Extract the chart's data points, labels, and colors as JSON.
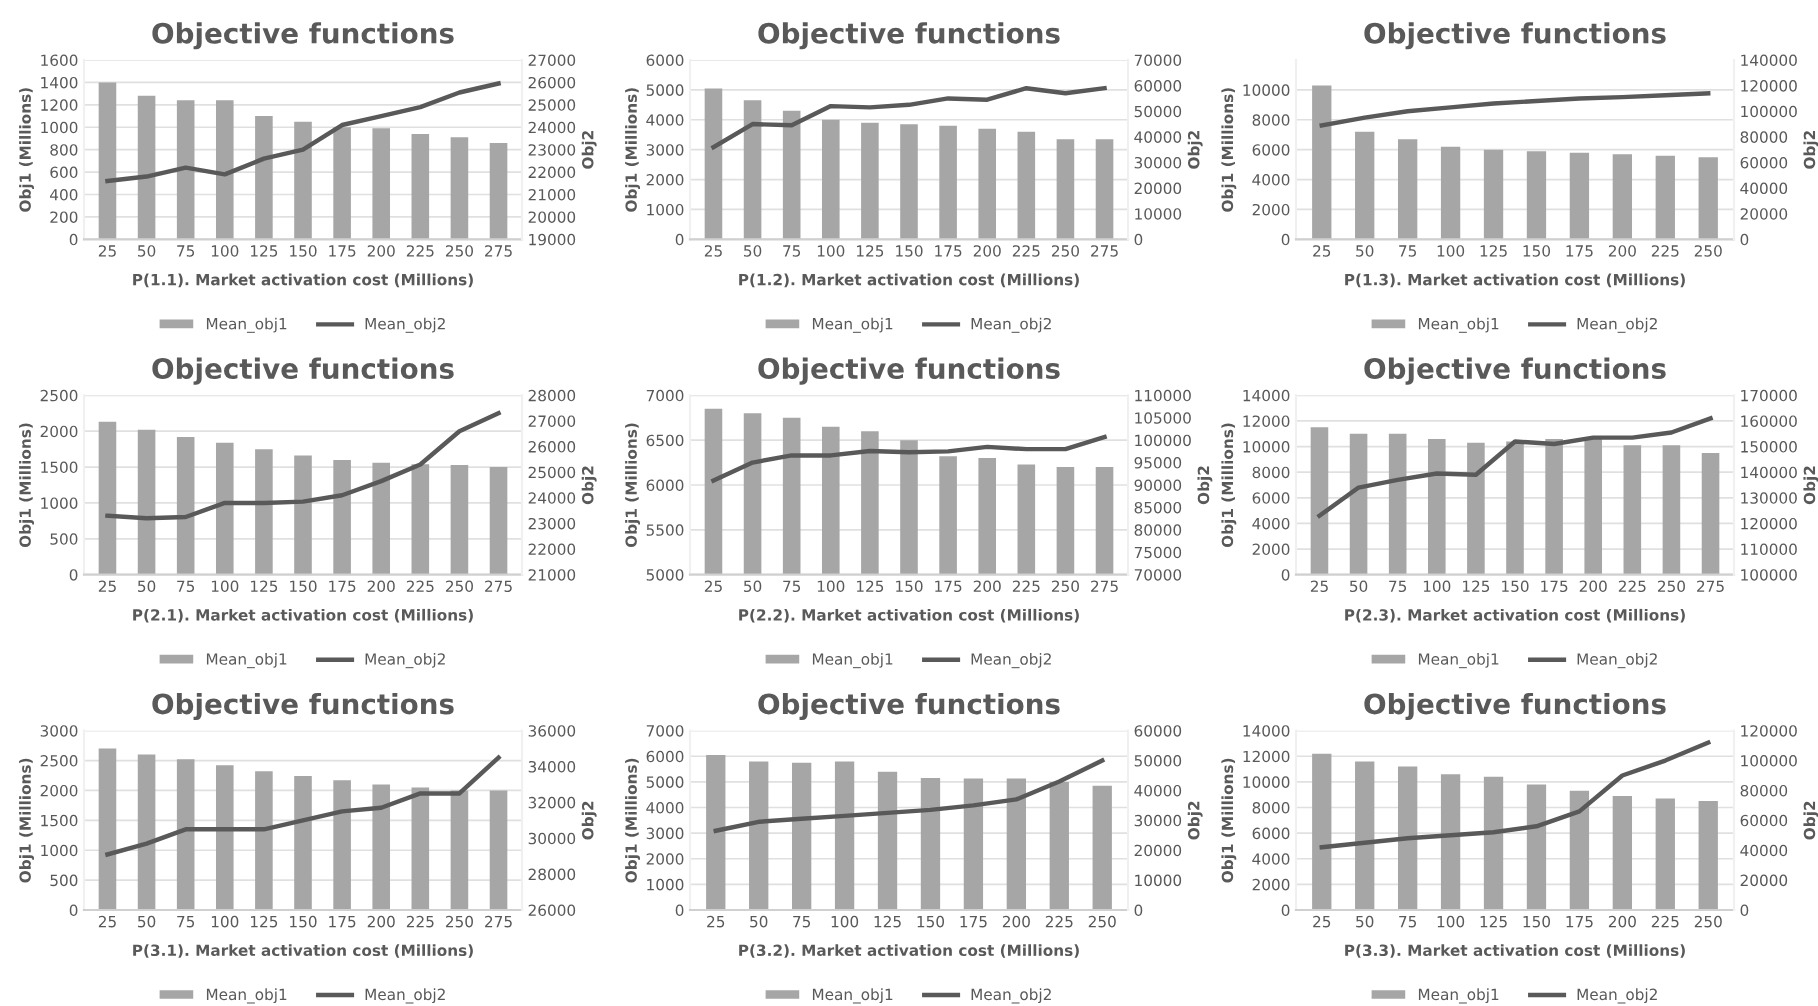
{
  "chart_data": [
    {
      "type": "bar",
      "title": "Objective functions",
      "xlabel": "P(1.1). Market activation cost (Millions)",
      "ylabel": "Obj1 (Millions)",
      "y2label": "Obj2",
      "categories": [
        "25",
        "50",
        "75",
        "100",
        "125",
        "150",
        "175",
        "200",
        "225",
        "250",
        "275"
      ],
      "series": [
        {
          "name": "Mean_obj1",
          "color": "#a6a6a6",
          "values": [
            1400,
            1280,
            1240,
            1240,
            1100,
            1050,
            1000,
            990,
            940,
            910,
            860
          ]
        },
        {
          "name": "Mean_obj2",
          "type": "line",
          "axis": "y2",
          "color": "#595959",
          "values": [
            21600,
            21800,
            22200,
            21900,
            22600,
            23000,
            24100,
            24500,
            24900,
            25550,
            25950
          ]
        }
      ],
      "ylim": [
        0,
        1600
      ],
      "yticks": [
        0,
        200,
        400,
        600,
        800,
        1000,
        1200,
        1400,
        1600
      ],
      "y2lim": [
        19000,
        27000
      ],
      "y2ticks": [
        19000,
        20000,
        21000,
        22000,
        23000,
        24000,
        25000,
        26000,
        27000
      ],
      "grid": "y",
      "legend": "bottom"
    },
    {
      "type": "bar",
      "title": "Objective functions",
      "xlabel": "P(1.2). Market activation cost (Millions)",
      "ylabel": "Obj1 (Millions)",
      "y2label": "Obj2",
      "categories": [
        "25",
        "50",
        "75",
        "100",
        "125",
        "150",
        "175",
        "200",
        "225",
        "250",
        "275"
      ],
      "series": [
        {
          "name": "Mean_obj1",
          "color": "#a6a6a6",
          "values": [
            5050,
            4650,
            4300,
            4000,
            3900,
            3850,
            3800,
            3700,
            3600,
            3350,
            3350
          ]
        },
        {
          "name": "Mean_obj2",
          "type": "line",
          "axis": "y2",
          "color": "#595959",
          "values": [
            36000,
            45000,
            44500,
            52000,
            51500,
            52500,
            55000,
            54500,
            59000,
            57000,
            59000
          ]
        }
      ],
      "ylim": [
        0,
        6000
      ],
      "yticks": [
        0,
        1000,
        2000,
        3000,
        4000,
        5000,
        6000
      ],
      "y2lim": [
        0,
        70000
      ],
      "y2ticks": [
        0,
        10000,
        20000,
        30000,
        40000,
        50000,
        60000,
        70000
      ],
      "grid": "y",
      "legend": "bottom"
    },
    {
      "type": "bar",
      "title": "Objective functions",
      "xlabel": "P(1.3). Market activation cost (Millions)",
      "ylabel": "Obj1 (Millions)",
      "y2label": "Obj2",
      "categories": [
        "25",
        "50",
        "75",
        "100",
        "125",
        "150",
        "175",
        "200",
        "225",
        "250"
      ],
      "series": [
        {
          "name": "Mean_obj1",
          "color": "#a6a6a6",
          "values": [
            10300,
            7200,
            6700,
            6200,
            6000,
            5900,
            5800,
            5700,
            5600,
            5500
          ]
        },
        {
          "name": "Mean_obj2",
          "type": "line",
          "axis": "y2",
          "color": "#595959",
          "values": [
            89000,
            95000,
            100000,
            103000,
            106000,
            108000,
            110000,
            111000,
            112500,
            114000
          ]
        }
      ],
      "ylim": [
        0,
        12000
      ],
      "yticks": [
        0,
        2000,
        4000,
        6000,
        8000,
        10000
      ],
      "y2lim": [
        0,
        140000
      ],
      "y2ticks": [
        0,
        20000,
        40000,
        60000,
        80000,
        100000,
        120000,
        140000
      ],
      "grid": "y",
      "legend": "bottom"
    },
    {
      "type": "bar",
      "title": "Objective functions",
      "xlabel": "P(2.1). Market activation cost (Millions)",
      "ylabel": "Obj1 (Millions)",
      "y2label": "Obj2",
      "categories": [
        "25",
        "50",
        "75",
        "100",
        "125",
        "150",
        "175",
        "200",
        "225",
        "250",
        "275"
      ],
      "series": [
        {
          "name": "Mean_obj1",
          "color": "#a6a6a6",
          "values": [
            2130,
            2020,
            1920,
            1840,
            1750,
            1660,
            1600,
            1560,
            1540,
            1530,
            1500
          ]
        },
        {
          "name": "Mean_obj2",
          "type": "line",
          "axis": "y2",
          "color": "#595959",
          "values": [
            23300,
            23200,
            23250,
            23800,
            23800,
            23850,
            24100,
            24650,
            25300,
            26600,
            27300
          ]
        }
      ],
      "ylim": [
        0,
        2500
      ],
      "yticks": [
        0,
        500,
        1000,
        1500,
        2000,
        2500
      ],
      "y2lim": [
        21000,
        28000
      ],
      "y2ticks": [
        21000,
        22000,
        23000,
        24000,
        25000,
        26000,
        27000,
        28000
      ],
      "grid": "y",
      "legend": "bottom"
    },
    {
      "type": "bar",
      "title": "Objective functions",
      "xlabel": "P(2.2). Market activation cost (Millions)",
      "ylabel": "Obj1 (Millions)",
      "y2label": "Obj2",
      "categories": [
        "25",
        "50",
        "75",
        "100",
        "125",
        "150",
        "175",
        "200",
        "225",
        "250",
        "275"
      ],
      "series": [
        {
          "name": "Mean_obj1",
          "color": "#a6a6a6",
          "values": [
            6850,
            6800,
            6750,
            6650,
            6600,
            6500,
            6320,
            6300,
            6230,
            6200,
            6200
          ]
        },
        {
          "name": "Mean_obj2",
          "type": "line",
          "axis": "y2",
          "color": "#595959",
          "values": [
            91000,
            95000,
            96600,
            96600,
            97600,
            97300,
            97500,
            98500,
            98000,
            98000,
            100700
          ]
        }
      ],
      "ylim": [
        5000,
        7000
      ],
      "yticks": [
        5000,
        5500,
        6000,
        6500,
        7000
      ],
      "y2lim": [
        70000,
        110000
      ],
      "y2ticks": [
        70000,
        75000,
        80000,
        85000,
        90000,
        95000,
        100000,
        105000,
        110000
      ],
      "grid": "y",
      "legend": "bottom"
    },
    {
      "type": "bar",
      "title": "Objective functions",
      "xlabel": "P(2.3). Market activation cost (Millions)",
      "ylabel": "Obj1 (Millions)",
      "y2label": "Obj2",
      "categories": [
        "25",
        "50",
        "75",
        "100",
        "125",
        "150",
        "175",
        "200",
        "225",
        "250",
        "275"
      ],
      "series": [
        {
          "name": "Mean_obj1",
          "color": "#a6a6a6",
          "values": [
            11500,
            11000,
            11000,
            10600,
            10300,
            10400,
            10600,
            10700,
            10100,
            10100,
            9500
          ]
        },
        {
          "name": "Mean_obj2",
          "type": "line",
          "axis": "y2",
          "color": "#595959",
          "values": [
            123000,
            134000,
            137000,
            139500,
            139000,
            152000,
            151000,
            153500,
            153500,
            155500,
            161000
          ]
        }
      ],
      "ylim": [
        0,
        14000
      ],
      "yticks": [
        0,
        2000,
        4000,
        6000,
        8000,
        10000,
        12000,
        14000
      ],
      "y2lim": [
        100000,
        170000
      ],
      "y2ticks": [
        100000,
        110000,
        120000,
        130000,
        140000,
        150000,
        160000,
        170000
      ],
      "grid": "y",
      "legend": "bottom"
    },
    {
      "type": "bar",
      "title": "Objective functions",
      "xlabel": "P(3.1). Market activation cost (Millions)",
      "ylabel": "Obj1 (Millions)",
      "y2label": "Obj2",
      "categories": [
        "25",
        "50",
        "75",
        "100",
        "125",
        "150",
        "175",
        "200",
        "225",
        "250",
        "275"
      ],
      "series": [
        {
          "name": "Mean_obj1",
          "color": "#a6a6a6",
          "values": [
            2700,
            2600,
            2520,
            2420,
            2320,
            2240,
            2170,
            2100,
            2050,
            2000,
            2000
          ]
        },
        {
          "name": "Mean_obj2",
          "type": "line",
          "axis": "y2",
          "color": "#595959",
          "values": [
            29100,
            29700,
            30500,
            30500,
            30500,
            31000,
            31500,
            31700,
            32500,
            32500,
            34500
          ]
        }
      ],
      "ylim": [
        0,
        3000
      ],
      "yticks": [
        0,
        500,
        1000,
        1500,
        2000,
        2500,
        3000
      ],
      "y2lim": [
        26000,
        36000
      ],
      "y2ticks": [
        26000,
        28000,
        30000,
        32000,
        34000,
        36000
      ],
      "grid": "y",
      "legend": "bottom"
    },
    {
      "type": "bar",
      "title": "Objective functions",
      "xlabel": "P(3.2). Market activation cost (Millions)",
      "ylabel": "Obj1 (Millions)",
      "y2label": "Obj2",
      "categories": [
        "25",
        "50",
        "75",
        "100",
        "125",
        "150",
        "175",
        "200",
        "225",
        "250"
      ],
      "series": [
        {
          "name": "Mean_obj1",
          "color": "#a6a6a6",
          "values": [
            6050,
            5800,
            5750,
            5800,
            5400,
            5150,
            5130,
            5130,
            5000,
            4850
          ]
        },
        {
          "name": "Mean_obj2",
          "type": "line",
          "axis": "y2",
          "color": "#595959",
          "values": [
            26500,
            29500,
            30500,
            31500,
            32500,
            33500,
            35000,
            37000,
            43000,
            50000
          ]
        }
      ],
      "ylim": [
        0,
        7000
      ],
      "yticks": [
        0,
        1000,
        2000,
        3000,
        4000,
        5000,
        6000,
        7000
      ],
      "y2lim": [
        0,
        60000
      ],
      "y2ticks": [
        0,
        10000,
        20000,
        30000,
        40000,
        50000,
        60000
      ],
      "grid": "y",
      "legend": "bottom"
    },
    {
      "type": "bar",
      "title": "Objective functions",
      "xlabel": "P(3.3). Market activation cost (Millions)",
      "ylabel": "Obj1 (Millions)",
      "y2label": "Obj2",
      "categories": [
        "25",
        "50",
        "75",
        "100",
        "125",
        "150",
        "175",
        "200",
        "225",
        "250"
      ],
      "series": [
        {
          "name": "Mean_obj1",
          "color": "#a6a6a6",
          "values": [
            12200,
            11600,
            11200,
            10600,
            10400,
            9800,
            9300,
            8900,
            8700,
            8500
          ]
        },
        {
          "name": "Mean_obj2",
          "type": "line",
          "axis": "y2",
          "color": "#595959",
          "values": [
            42000,
            45000,
            48000,
            50000,
            52000,
            56000,
            66000,
            90000,
            100000,
            112000
          ]
        }
      ],
      "ylim": [
        0,
        14000
      ],
      "yticks": [
        0,
        2000,
        4000,
        6000,
        8000,
        10000,
        12000,
        14000
      ],
      "y2lim": [
        0,
        120000
      ],
      "y2ticks": [
        0,
        20000,
        40000,
        60000,
        80000,
        100000,
        120000
      ],
      "grid": "y",
      "legend": "bottom"
    }
  ]
}
